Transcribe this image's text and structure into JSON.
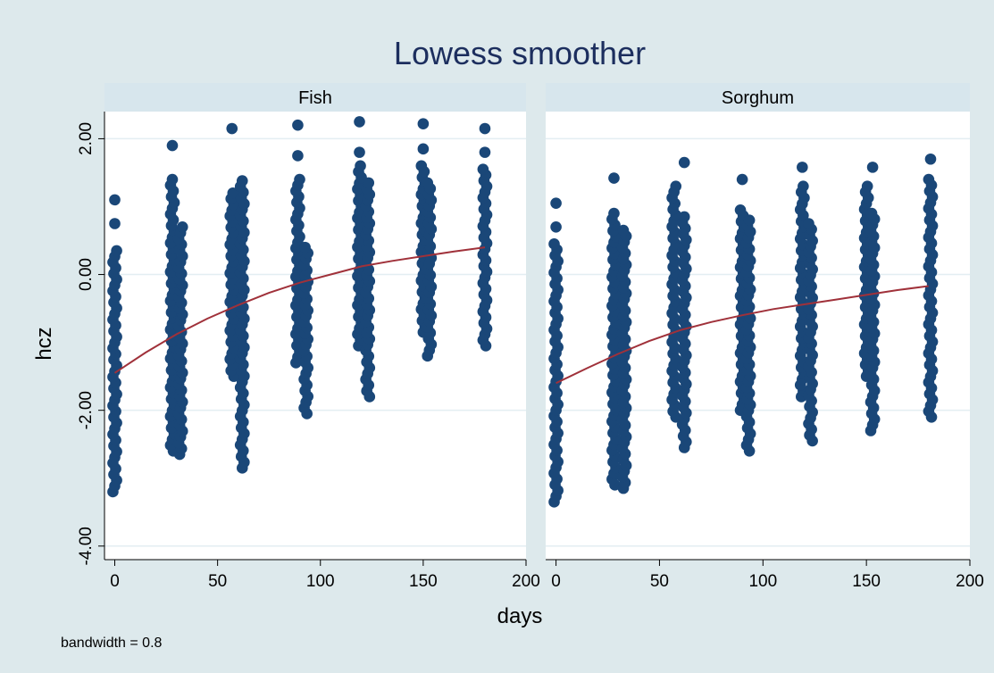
{
  "chart_data": {
    "type": "scatter",
    "title": "Lowess smoother",
    "xlabel": "days",
    "ylabel": "hcz",
    "note": "bandwidth = 0.8",
    "xlim": [
      -5,
      200
    ],
    "ylim": [
      -4.2,
      2.4
    ],
    "xticks": [
      0,
      50,
      100,
      150,
      200
    ],
    "xtick_labels": [
      "0",
      "50",
      "100",
      "150",
      "200"
    ],
    "yticks": [
      -4,
      -2,
      0,
      2
    ],
    "ytick_labels": [
      "-4.00",
      "-2.00",
      "0.00",
      "2.00"
    ],
    "grid": true,
    "colors": {
      "background": "#dde9ec",
      "plot_region": "#ffffff",
      "strip": "#d7e6ed",
      "points": "#1a4778",
      "lowess": "#a0313a",
      "title": "#1c2e5e",
      "gridline": "#e3eef2"
    },
    "panels": [
      {
        "name": "Fish",
        "groups": [
          {
            "x": 0,
            "ymin": -3.2,
            "ymax": 0.35,
            "outliers": [
              0.75,
              1.1
            ]
          },
          {
            "x": 28,
            "ymin": -2.6,
            "ymax": 1.4,
            "outliers": [
              1.9
            ]
          },
          {
            "x": 32,
            "ymin": -2.65,
            "ymax": 0.7,
            "outliers": []
          },
          {
            "x": 57,
            "ymin": -1.5,
            "ymax": 1.2,
            "outliers": [
              2.15
            ]
          },
          {
            "x": 62,
            "ymin": -2.85,
            "ymax": 1.38,
            "outliers": []
          },
          {
            "x": 89,
            "ymin": -1.3,
            "ymax": 1.4,
            "outliers": [
              1.75,
              2.2
            ]
          },
          {
            "x": 93,
            "ymin": -2.05,
            "ymax": 0.4,
            "outliers": []
          },
          {
            "x": 119,
            "ymin": -1.05,
            "ymax": 1.6,
            "outliers": [
              1.8,
              2.25
            ]
          },
          {
            "x": 123,
            "ymin": -1.8,
            "ymax": 1.35,
            "outliers": []
          },
          {
            "x": 150,
            "ymin": -0.85,
            "ymax": 1.6,
            "outliers": [
              1.85,
              2.22
            ]
          },
          {
            "x": 153,
            "ymin": -1.2,
            "ymax": 1.35,
            "outliers": []
          },
          {
            "x": 180,
            "ymin": -1.05,
            "ymax": 1.55,
            "outliers": [
              1.8,
              2.15
            ]
          }
        ],
        "lowess": {
          "x": [
            0,
            15,
            30,
            45,
            60,
            75,
            90,
            105,
            120,
            135,
            150,
            165,
            180
          ],
          "y": [
            -1.45,
            -1.15,
            -0.88,
            -0.65,
            -0.45,
            -0.27,
            -0.12,
            0.0,
            0.12,
            0.2,
            0.27,
            0.34,
            0.4
          ]
        }
      },
      {
        "name": "Sorghum",
        "groups": [
          {
            "x": 0,
            "ymin": -3.35,
            "ymax": 0.45,
            "outliers": [
              0.7,
              1.05
            ]
          },
          {
            "x": 28,
            "ymin": -3.1,
            "ymax": 0.9,
            "outliers": [
              1.42
            ]
          },
          {
            "x": 33,
            "ymin": -3.15,
            "ymax": 0.65,
            "outliers": []
          },
          {
            "x": 57,
            "ymin": -2.1,
            "ymax": 1.3,
            "outliers": []
          },
          {
            "x": 62,
            "ymin": -2.55,
            "ymax": 0.85,
            "outliers": [
              1.65
            ]
          },
          {
            "x": 90,
            "ymin": -2.0,
            "ymax": 0.95,
            "outliers": [
              1.4
            ]
          },
          {
            "x": 93,
            "ymin": -2.6,
            "ymax": 0.8,
            "outliers": []
          },
          {
            "x": 119,
            "ymin": -1.8,
            "ymax": 1.3,
            "outliers": [
              1.58
            ]
          },
          {
            "x": 123,
            "ymin": -2.45,
            "ymax": 0.75,
            "outliers": []
          },
          {
            "x": 150,
            "ymin": -1.5,
            "ymax": 1.3,
            "outliers": []
          },
          {
            "x": 153,
            "ymin": -2.3,
            "ymax": 0.9,
            "outliers": [
              1.58
            ]
          },
          {
            "x": 181,
            "ymin": -2.1,
            "ymax": 1.4,
            "outliers": [
              1.7
            ]
          }
        ],
        "lowess": {
          "x": [
            0,
            15,
            30,
            45,
            60,
            75,
            90,
            105,
            120,
            135,
            150,
            165,
            180
          ],
          "y": [
            -1.6,
            -1.38,
            -1.17,
            -0.98,
            -0.82,
            -0.7,
            -0.6,
            -0.51,
            -0.44,
            -0.37,
            -0.3,
            -0.23,
            -0.17
          ]
        }
      }
    ]
  }
}
